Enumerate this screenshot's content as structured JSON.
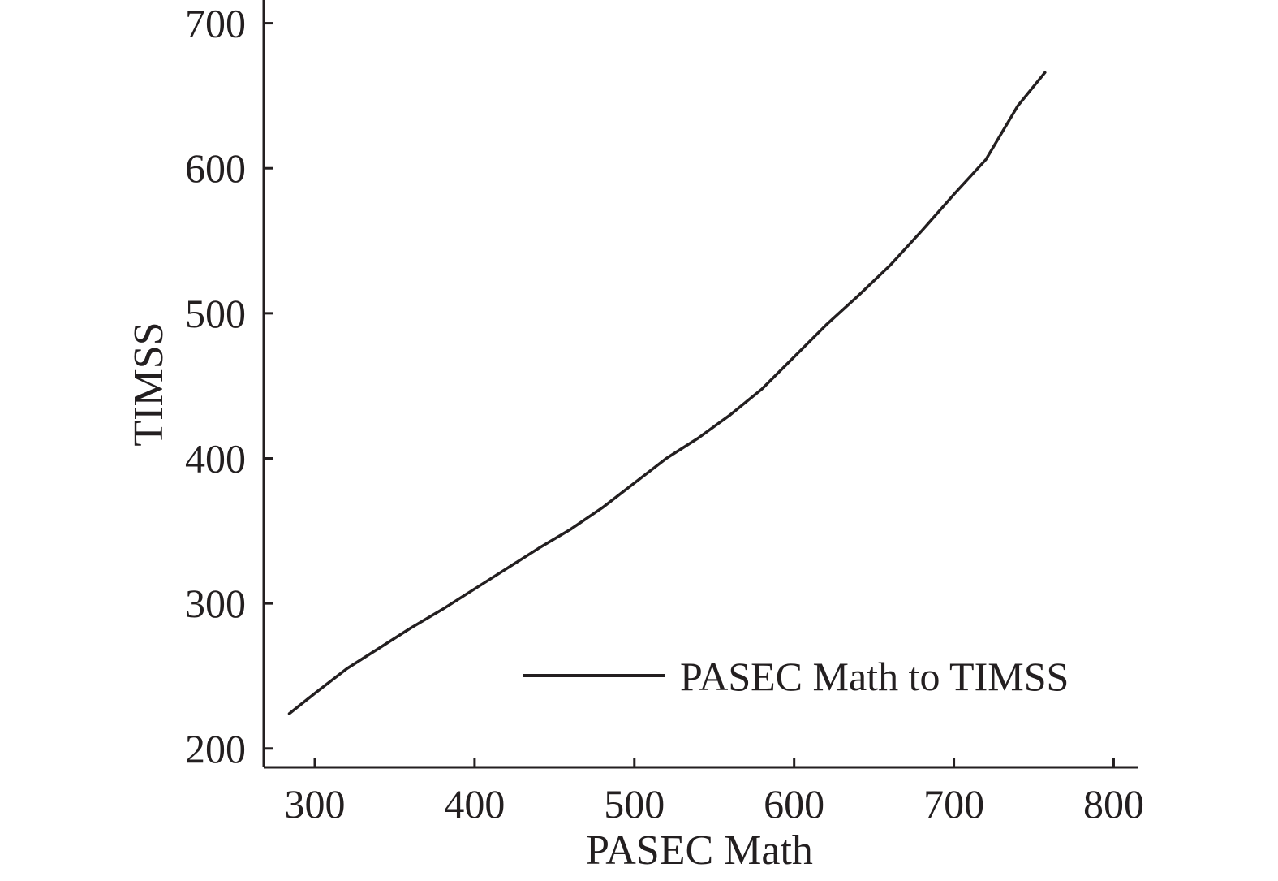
{
  "chart_data": {
    "type": "line",
    "title": "",
    "xlabel": "PASEC Math",
    "ylabel": "TIMSS",
    "xlim": [
      268,
      815
    ],
    "ylim": [
      187,
      716
    ],
    "x_ticks": [
      300,
      400,
      500,
      600,
      700,
      800
    ],
    "y_ticks": [
      200,
      300,
      400,
      500,
      600,
      700
    ],
    "grid": false,
    "legend_position": "bottom-right",
    "line_color": "#231f20",
    "series": [
      {
        "name": "PASEC Math to TIMSS",
        "x": [
          284,
          300,
          320,
          340,
          360,
          380,
          400,
          420,
          440,
          460,
          480,
          500,
          520,
          540,
          560,
          580,
          600,
          620,
          640,
          660,
          680,
          700,
          720,
          740,
          757
        ],
        "y": [
          224,
          238,
          255,
          269,
          283,
          296,
          310,
          324,
          338,
          351,
          366,
          383,
          400,
          414,
          430,
          448,
          470,
          492,
          512,
          533,
          557,
          582,
          606,
          643,
          666
        ]
      }
    ]
  }
}
